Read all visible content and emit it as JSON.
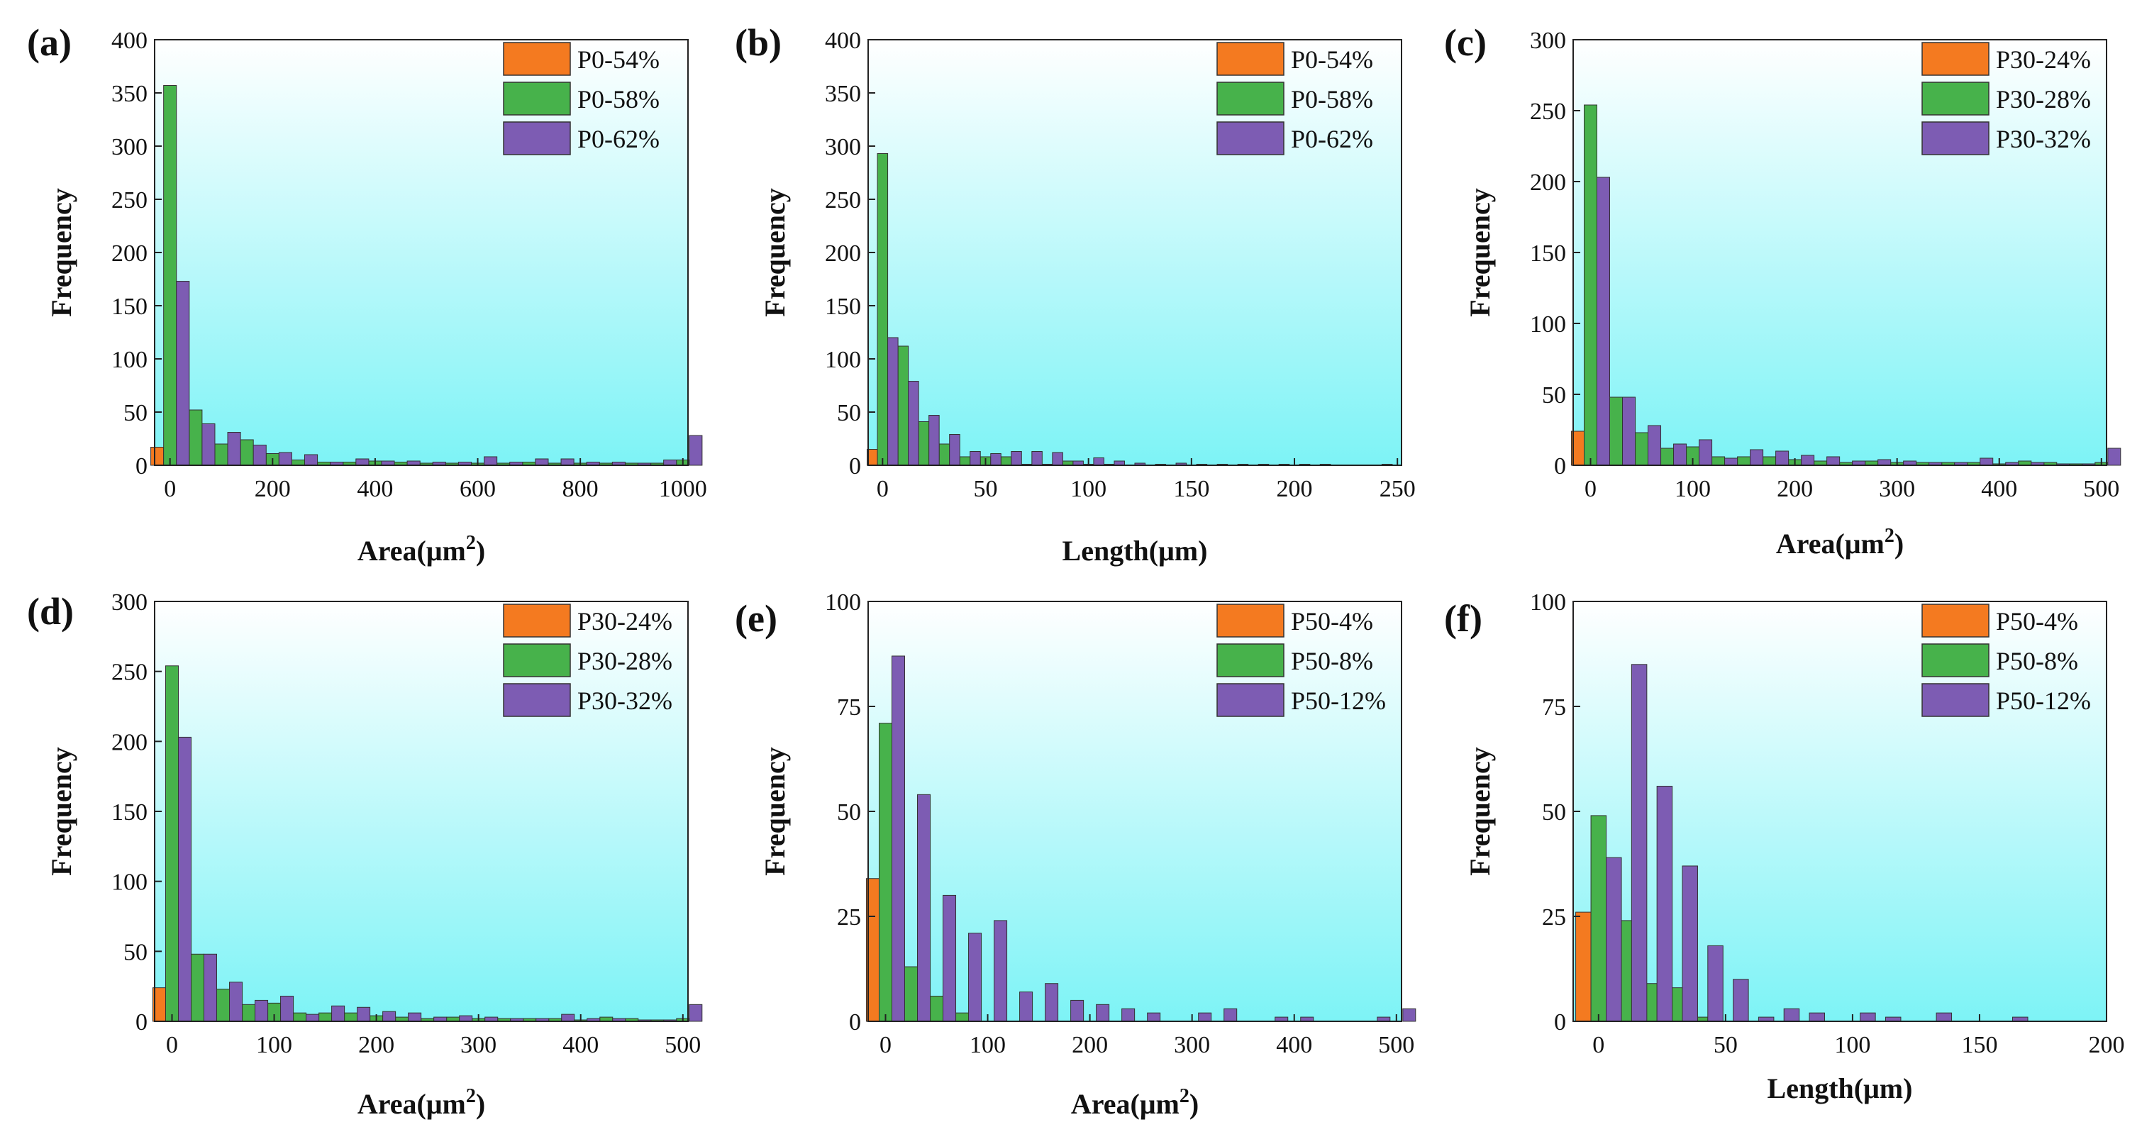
{
  "colors": {
    "series": [
      "#f47a20",
      "#47b24b",
      "#7d5cb3"
    ],
    "bg_top": "#ffffff",
    "bg_bottom": "#7df3f6"
  },
  "chart_data": [
    {
      "panel_label": "(a)",
      "type": "bar",
      "xlabel": "Area(μm²)",
      "xlabel_base": "Area(μm",
      "xlabel_sup": "2",
      "xlabel_tail": ")",
      "ylabel": "Frequency",
      "xlim": [
        -30,
        1010
      ],
      "ylim": [
        0,
        400
      ],
      "bin_width": 25,
      "xticks": [
        "0",
        "200",
        "400",
        "600",
        "800",
        "1000"
      ],
      "xtick_values": [
        0,
        200,
        400,
        600,
        800,
        1000
      ],
      "yticks": [
        "0",
        "50",
        "100",
        "150",
        "200",
        "250",
        "300",
        "350",
        "400"
      ],
      "ytick_values": [
        0,
        50,
        100,
        150,
        200,
        250,
        300,
        350,
        400
      ],
      "series": [
        {
          "name": "P0-54%",
          "points": [
            [
              0,
              17
            ]
          ]
        },
        {
          "name": "P0-58%",
          "points": [
            [
              0,
              357
            ],
            [
              50,
              52
            ],
            [
              100,
              20
            ],
            [
              150,
              24
            ],
            [
              200,
              11
            ],
            [
              250,
              5
            ],
            [
              300,
              3
            ],
            [
              350,
              3
            ],
            [
              400,
              4
            ],
            [
              450,
              3
            ],
            [
              500,
              2
            ],
            [
              550,
              2
            ],
            [
              600,
              2
            ],
            [
              650,
              2
            ],
            [
              700,
              3
            ],
            [
              750,
              2
            ],
            [
              800,
              2
            ],
            [
              850,
              2
            ],
            [
              900,
              2
            ],
            [
              950,
              2
            ],
            [
              1000,
              5
            ]
          ]
        },
        {
          "name": "P0-62%",
          "points": [
            [
              0,
              173
            ],
            [
              50,
              39
            ],
            [
              100,
              31
            ],
            [
              150,
              19
            ],
            [
              200,
              12
            ],
            [
              250,
              10
            ],
            [
              300,
              3
            ],
            [
              350,
              6
            ],
            [
              400,
              4
            ],
            [
              450,
              4
            ],
            [
              500,
              3
            ],
            [
              550,
              3
            ],
            [
              600,
              8
            ],
            [
              650,
              3
            ],
            [
              700,
              6
            ],
            [
              750,
              6
            ],
            [
              800,
              3
            ],
            [
              850,
              3
            ],
            [
              900,
              2
            ],
            [
              950,
              5
            ],
            [
              1000,
              28
            ]
          ]
        }
      ]
    },
    {
      "panel_label": "(b)",
      "type": "bar",
      "xlabel": "Length(μm)",
      "ylabel": "Frequency",
      "xlim": [
        -7,
        252
      ],
      "ylim": [
        0,
        400
      ],
      "bin_width": 5,
      "xticks": [
        "0",
        "50",
        "100",
        "150",
        "200",
        "250"
      ],
      "xtick_values": [
        0,
        50,
        100,
        150,
        200,
        250
      ],
      "yticks": [
        "0",
        "50",
        "100",
        "150",
        "200",
        "250",
        "300",
        "350",
        "400"
      ],
      "ytick_values": [
        0,
        50,
        100,
        150,
        200,
        250,
        300,
        350,
        400
      ],
      "series": [
        {
          "name": "P0-54%",
          "points": [
            [
              0,
              15
            ]
          ]
        },
        {
          "name": "P0-58%",
          "points": [
            [
              0,
              293
            ],
            [
              10,
              112
            ],
            [
              20,
              41
            ],
            [
              30,
              20
            ],
            [
              40,
              8
            ],
            [
              50,
              8
            ],
            [
              60,
              8
            ],
            [
              70,
              1
            ],
            [
              80,
              1
            ],
            [
              90,
              4
            ],
            [
              100,
              1
            ],
            [
              110,
              1
            ]
          ]
        },
        {
          "name": "P0-62%",
          "points": [
            [
              0,
              120
            ],
            [
              10,
              79
            ],
            [
              20,
              47
            ],
            [
              30,
              29
            ],
            [
              40,
              13
            ],
            [
              50,
              11
            ],
            [
              60,
              13
            ],
            [
              70,
              13
            ],
            [
              80,
              12
            ],
            [
              90,
              4
            ],
            [
              100,
              7
            ],
            [
              110,
              4
            ],
            [
              120,
              2
            ],
            [
              130,
              1
            ],
            [
              140,
              2
            ],
            [
              150,
              1
            ],
            [
              160,
              1
            ],
            [
              170,
              1
            ],
            [
              180,
              1
            ],
            [
              190,
              1
            ],
            [
              200,
              1
            ],
            [
              210,
              1
            ],
            [
              240,
              1
            ]
          ]
        }
      ]
    },
    {
      "panel_label": "(c)",
      "type": "bar",
      "xlabel": "Area(μm²)",
      "xlabel_base": "Area(μm",
      "xlabel_sup": "2",
      "xlabel_tail": ")",
      "ylabel": "Frequency",
      "xlim": [
        -17,
        505
      ],
      "ylim": [
        0,
        300
      ],
      "bin_width": 12.5,
      "xticks": [
        "0",
        "100",
        "200",
        "300",
        "400",
        "500"
      ],
      "xtick_values": [
        0,
        100,
        200,
        300,
        400,
        500
      ],
      "yticks": [
        "0",
        "50",
        "100",
        "150",
        "200",
        "250",
        "300"
      ],
      "ytick_values": [
        0,
        50,
        100,
        150,
        200,
        250,
        300
      ],
      "series": [
        {
          "name": "P30-24%",
          "points": [
            [
              0,
              24
            ]
          ]
        },
        {
          "name": "P30-28%",
          "points": [
            [
              0,
              254
            ],
            [
              25,
              48
            ],
            [
              50,
              23
            ],
            [
              75,
              12
            ],
            [
              100,
              13
            ],
            [
              125,
              6
            ],
            [
              150,
              6
            ],
            [
              175,
              6
            ],
            [
              200,
              4
            ],
            [
              225,
              3
            ],
            [
              250,
              2
            ],
            [
              275,
              3
            ],
            [
              300,
              2
            ],
            [
              325,
              2
            ],
            [
              350,
              2
            ],
            [
              375,
              2
            ],
            [
              400,
              1
            ],
            [
              425,
              3
            ],
            [
              450,
              2
            ],
            [
              475,
              1
            ],
            [
              500,
              2
            ]
          ]
        },
        {
          "name": "P30-32%",
          "points": [
            [
              0,
              203
            ],
            [
              25,
              48
            ],
            [
              50,
              28
            ],
            [
              75,
              15
            ],
            [
              100,
              18
            ],
            [
              125,
              5
            ],
            [
              150,
              11
            ],
            [
              175,
              10
            ],
            [
              200,
              7
            ],
            [
              225,
              6
            ],
            [
              250,
              3
            ],
            [
              275,
              4
            ],
            [
              300,
              3
            ],
            [
              325,
              2
            ],
            [
              350,
              2
            ],
            [
              375,
              5
            ],
            [
              400,
              2
            ],
            [
              425,
              2
            ],
            [
              450,
              1
            ],
            [
              475,
              1
            ],
            [
              500,
              12
            ]
          ]
        }
      ]
    },
    {
      "panel_label": "(d)",
      "type": "bar",
      "xlabel": "Area(μm²)",
      "xlabel_base": "Area(μm",
      "xlabel_sup": "2",
      "xlabel_tail": ")",
      "ylabel": "Frequency",
      "xlim": [
        -17,
        505
      ],
      "ylim": [
        0,
        300
      ],
      "bin_width": 12.5,
      "xticks": [
        "0",
        "100",
        "200",
        "300",
        "400",
        "500"
      ],
      "xtick_values": [
        0,
        100,
        200,
        300,
        400,
        500
      ],
      "yticks": [
        "0",
        "50",
        "100",
        "150",
        "200",
        "250",
        "300"
      ],
      "ytick_values": [
        0,
        50,
        100,
        150,
        200,
        250,
        300
      ],
      "series": [
        {
          "name": "P30-24%",
          "points": [
            [
              0,
              24
            ]
          ]
        },
        {
          "name": "P30-28%",
          "points": [
            [
              0,
              254
            ],
            [
              25,
              48
            ],
            [
              50,
              23
            ],
            [
              75,
              12
            ],
            [
              100,
              13
            ],
            [
              125,
              6
            ],
            [
              150,
              6
            ],
            [
              175,
              6
            ],
            [
              200,
              4
            ],
            [
              225,
              3
            ],
            [
              250,
              2
            ],
            [
              275,
              3
            ],
            [
              300,
              2
            ],
            [
              325,
              2
            ],
            [
              350,
              2
            ],
            [
              375,
              2
            ],
            [
              400,
              1
            ],
            [
              425,
              3
            ],
            [
              450,
              2
            ],
            [
              475,
              1
            ],
            [
              500,
              2
            ]
          ]
        },
        {
          "name": "P30-32%",
          "points": [
            [
              0,
              203
            ],
            [
              25,
              48
            ],
            [
              50,
              28
            ],
            [
              75,
              15
            ],
            [
              100,
              18
            ],
            [
              125,
              5
            ],
            [
              150,
              11
            ],
            [
              175,
              10
            ],
            [
              200,
              7
            ],
            [
              225,
              6
            ],
            [
              250,
              3
            ],
            [
              275,
              4
            ],
            [
              300,
              3
            ],
            [
              325,
              2
            ],
            [
              350,
              2
            ],
            [
              375,
              5
            ],
            [
              400,
              2
            ],
            [
              425,
              2
            ],
            [
              450,
              1
            ],
            [
              475,
              1
            ],
            [
              500,
              12
            ]
          ]
        }
      ]
    },
    {
      "panel_label": "(e)",
      "type": "bar",
      "xlabel": "Area(μm²)",
      "xlabel_base": "Area(μm",
      "xlabel_sup": "2",
      "xlabel_tail": ")",
      "ylabel": "Frequency",
      "xlim": [
        -17,
        505
      ],
      "ylim": [
        0,
        100
      ],
      "bin_width": 12.5,
      "xticks": [
        "0",
        "100",
        "200",
        "300",
        "400",
        "500"
      ],
      "xtick_values": [
        0,
        100,
        200,
        300,
        400,
        500
      ],
      "yticks": [
        "0",
        "25",
        "50",
        "75",
        "100"
      ],
      "ytick_values": [
        0,
        25,
        50,
        75,
        100
      ],
      "series": [
        {
          "name": "P50-4%",
          "points": [
            [
              0,
              34
            ],
            [
              25,
              4
            ]
          ]
        },
        {
          "name": "P50-8%",
          "points": [
            [
              0,
              71
            ],
            [
              25,
              13
            ],
            [
              50,
              6
            ],
            [
              75,
              2
            ]
          ]
        },
        {
          "name": "P50-12%",
          "points": [
            [
              0,
              87
            ],
            [
              25,
              54
            ],
            [
              50,
              30
            ],
            [
              75,
              21
            ],
            [
              100,
              24
            ],
            [
              125,
              7
            ],
            [
              150,
              9
            ],
            [
              175,
              5
            ],
            [
              200,
              4
            ],
            [
              225,
              3
            ],
            [
              250,
              2
            ],
            [
              275,
              0
            ],
            [
              300,
              2
            ],
            [
              325,
              3
            ],
            [
              375,
              1
            ],
            [
              400,
              1
            ],
            [
              475,
              1
            ],
            [
              500,
              3
            ]
          ]
        }
      ]
    },
    {
      "panel_label": "(f)",
      "type": "bar",
      "xlabel": "Length(μm)",
      "ylabel": "Frequency",
      "xlim": [
        -10,
        200
      ],
      "ylim": [
        0,
        100
      ],
      "bin_width": 6,
      "xticks": [
        "0",
        "50",
        "100",
        "150",
        "200"
      ],
      "xtick_values": [
        0,
        50,
        100,
        150,
        200
      ],
      "yticks": [
        "0",
        "25",
        "50",
        "75",
        "100"
      ],
      "ytick_values": [
        0,
        25,
        50,
        75,
        100
      ],
      "series": [
        {
          "name": "P50-4%",
          "points": [
            [
              0,
              26
            ],
            [
              10,
              9
            ],
            [
              20,
              3
            ]
          ]
        },
        {
          "name": "P50-8%",
          "points": [
            [
              0,
              49
            ],
            [
              10,
              24
            ],
            [
              20,
              9
            ],
            [
              30,
              8
            ],
            [
              40,
              1
            ]
          ]
        },
        {
          "name": "P50-12%",
          "points": [
            [
              0,
              39
            ],
            [
              10,
              85
            ],
            [
              20,
              56
            ],
            [
              30,
              37
            ],
            [
              40,
              18
            ],
            [
              50,
              10
            ],
            [
              60,
              1
            ],
            [
              70,
              3
            ],
            [
              80,
              2
            ],
            [
              100,
              2
            ],
            [
              110,
              1
            ],
            [
              130,
              2
            ],
            [
              150,
              0
            ],
            [
              160,
              1
            ]
          ]
        }
      ]
    }
  ]
}
